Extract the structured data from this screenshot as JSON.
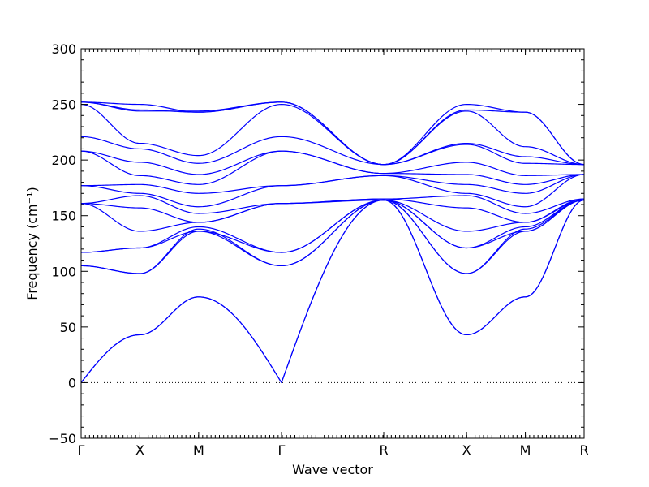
{
  "chart_data": {
    "type": "line",
    "xlabel": "Wave vector",
    "ylabel": "Frequency (cm⁻¹)",
    "ylim": [
      -50,
      300
    ],
    "yticks": [
      -50,
      0,
      50,
      100,
      150,
      200,
      250,
      300
    ],
    "ytick_labels": [
      "−50",
      "0",
      "50",
      "100",
      "150",
      "200",
      "250",
      "300"
    ],
    "kpoints": [
      {
        "label": "Γ",
        "pos": 0
      },
      {
        "label": "X",
        "pos": 1
      },
      {
        "label": "M",
        "pos": 2
      },
      {
        "label": "Γ",
        "pos": 3.41
      },
      {
        "label": "R",
        "pos": 5.15
      },
      {
        "label": "X",
        "pos": 6.56
      },
      {
        "label": "M",
        "pos": 7.56
      },
      {
        "label": "R",
        "pos": 8.56
      }
    ],
    "zero_line": true,
    "series_color": "#0000ff",
    "segment_values": {
      "G-X": [
        [
          0,
          43
        ],
        [
          0,
          43
        ],
        [
          105,
          98
        ],
        [
          105,
          98
        ],
        [
          117,
          121
        ],
        [
          117,
          121
        ],
        [
          161,
          136
        ],
        [
          161,
          157
        ],
        [
          161,
          168
        ],
        [
          177,
          170
        ],
        [
          177,
          178
        ],
        [
          208,
          186
        ],
        [
          208,
          198
        ],
        [
          221,
          210
        ],
        [
          250,
          215
        ],
        [
          252,
          244
        ],
        [
          252,
          245
        ],
        [
          252,
          250
        ]
      ],
      "X-M": [
        [
          43,
          77
        ],
        [
          43,
          77
        ],
        [
          98,
          136
        ],
        [
          98,
          138
        ],
        [
          121,
          136
        ],
        [
          121,
          140
        ],
        [
          136,
          144
        ],
        [
          157,
          144
        ],
        [
          168,
          152
        ],
        [
          170,
          158
        ],
        [
          178,
          170
        ],
        [
          186,
          178
        ],
        [
          198,
          187
        ],
        [
          210,
          197
        ],
        [
          215,
          204
        ],
        [
          244,
          244
        ],
        [
          245,
          243
        ],
        [
          250,
          243
        ]
      ],
      "M-G": [
        [
          77,
          0
        ],
        [
          77,
          0
        ],
        [
          136,
          105
        ],
        [
          138,
          105
        ],
        [
          136,
          117
        ],
        [
          140,
          117
        ],
        [
          144,
          161
        ],
        [
          144,
          161
        ],
        [
          152,
          161
        ],
        [
          158,
          177
        ],
        [
          170,
          177
        ],
        [
          178,
          208
        ],
        [
          187,
          208
        ],
        [
          197,
          221
        ],
        [
          204,
          250
        ],
        [
          244,
          252
        ],
        [
          243,
          252
        ],
        [
          243,
          252
        ]
      ],
      "G-R": [
        [
          0,
          164
        ],
        [
          0,
          164
        ],
        [
          105,
          164
        ],
        [
          105,
          164
        ],
        [
          117,
          164
        ],
        [
          117,
          164
        ],
        [
          161,
          164
        ],
        [
          161,
          165
        ],
        [
          161,
          165
        ],
        [
          177,
          186
        ],
        [
          177,
          186
        ],
        [
          208,
          188
        ],
        [
          208,
          188
        ],
        [
          221,
          196
        ],
        [
          250,
          196
        ],
        [
          252,
          196
        ],
        [
          252,
          196
        ],
        [
          252,
          196
        ]
      ],
      "R-X": [
        [
          164,
          43
        ],
        [
          164,
          43
        ],
        [
          164,
          98
        ],
        [
          164,
          98
        ],
        [
          164,
          121
        ],
        [
          164,
          121
        ],
        [
          164,
          136
        ],
        [
          165,
          157
        ],
        [
          165,
          168
        ],
        [
          186,
          170
        ],
        [
          186,
          178
        ],
        [
          188,
          187
        ],
        [
          188,
          198
        ],
        [
          196,
          214
        ],
        [
          196,
          215
        ],
        [
          196,
          244
        ],
        [
          196,
          245
        ],
        [
          196,
          250
        ]
      ],
      "X-M2": [
        [
          43,
          77
        ],
        [
          43,
          77
        ],
        [
          98,
          136
        ],
        [
          98,
          138
        ],
        [
          121,
          136
        ],
        [
          121,
          140
        ],
        [
          136,
          144
        ],
        [
          157,
          144
        ],
        [
          168,
          152
        ],
        [
          170,
          158
        ],
        [
          178,
          170
        ],
        [
          187,
          178
        ],
        [
          198,
          186
        ],
        [
          214,
          197
        ],
        [
          215,
          203
        ],
        [
          244,
          212
        ],
        [
          245,
          243
        ],
        [
          250,
          243
        ]
      ],
      "M-R": [
        [
          77,
          164
        ],
        [
          77,
          164
        ],
        [
          136,
          164
        ],
        [
          138,
          164
        ],
        [
          136,
          164
        ],
        [
          140,
          164
        ],
        [
          144,
          164
        ],
        [
          144,
          165
        ],
        [
          152,
          165
        ],
        [
          158,
          187
        ],
        [
          170,
          187
        ],
        [
          178,
          187
        ],
        [
          186,
          187
        ],
        [
          197,
          196
        ],
        [
          203,
          196
        ],
        [
          212,
          196
        ],
        [
          243,
          196
        ],
        [
          243,
          196
        ]
      ]
    }
  }
}
